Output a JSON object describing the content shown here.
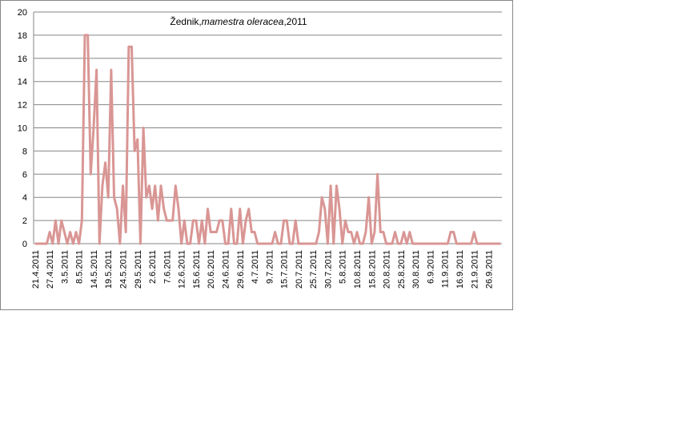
{
  "chart_data": {
    "type": "line",
    "title_parts": [
      "Žednik,",
      "mamestra oleracea",
      ",2011"
    ],
    "categories": [
      "21.4.2011",
      null,
      null,
      null,
      null,
      "27.4.2011",
      null,
      null,
      null,
      null,
      "3.5.2011",
      null,
      null,
      null,
      null,
      "8.5.2011",
      null,
      null,
      null,
      null,
      "14.5.2011",
      null,
      null,
      null,
      null,
      "19.5.2011",
      null,
      null,
      null,
      null,
      "24.5.2011",
      null,
      null,
      null,
      null,
      "29.5.2011",
      null,
      null,
      null,
      null,
      "2.6.2011",
      null,
      null,
      null,
      null,
      "7.6.2011",
      null,
      null,
      null,
      null,
      "12.6.2011",
      null,
      null,
      null,
      null,
      "15.6.2011",
      null,
      null,
      null,
      null,
      "20.6.2011",
      null,
      null,
      null,
      null,
      "24.6.2011",
      null,
      null,
      null,
      null,
      "29.6.2011",
      null,
      null,
      null,
      null,
      "4.7.2011",
      null,
      null,
      null,
      null,
      "9.7.2011",
      null,
      null,
      null,
      null,
      "15.7.2011",
      null,
      null,
      null,
      null,
      "20.7.2011",
      null,
      null,
      null,
      null,
      "25.7.2011",
      null,
      null,
      null,
      null,
      "30.7.2011",
      null,
      null,
      null,
      null,
      "5.8.2011",
      null,
      null,
      null,
      null,
      "10.8.2011",
      null,
      null,
      null,
      null,
      "15.8.2011",
      null,
      null,
      null,
      null,
      "20.8.2011",
      null,
      null,
      null,
      null,
      "25.8.2011",
      null,
      null,
      null,
      null,
      "30.8.2011",
      null,
      null,
      null,
      null,
      "6.9.2011",
      null,
      null,
      null,
      null,
      "11.9.2011",
      null,
      null,
      null,
      null,
      "16.9.2011",
      null,
      null,
      null,
      null,
      "21.9.2011",
      null,
      null,
      null,
      null,
      "26.9.2011",
      null,
      null,
      null,
      null
    ],
    "values": [
      0,
      0,
      0,
      0,
      0,
      1,
      0,
      2,
      0,
      2,
      1,
      0,
      1,
      0,
      1,
      0,
      2,
      18,
      18,
      6,
      10,
      15,
      0,
      5,
      7,
      4,
      15,
      4,
      3,
      0,
      5,
      1,
      17,
      17,
      8,
      9,
      0,
      10,
      4,
      5,
      3,
      5,
      2,
      5,
      3,
      2,
      2,
      2,
      5,
      3,
      0,
      2,
      0,
      0,
      2,
      2,
      0,
      2,
      0,
      3,
      1,
      1,
      1,
      2,
      2,
      0,
      0,
      3,
      0,
      0,
      3,
      0,
      2,
      3,
      1,
      1,
      0,
      0,
      0,
      0,
      0,
      0,
      1,
      0,
      0,
      2,
      2,
      0,
      0,
      2,
      0,
      0,
      0,
      0,
      0,
      0,
      0,
      1,
      4,
      3,
      0,
      5,
      0,
      5,
      3,
      0,
      2,
      1,
      1,
      0,
      1,
      0,
      0,
      1,
      4,
      0,
      1,
      6,
      1,
      1,
      0,
      0,
      0,
      1,
      0,
      0,
      1,
      0,
      1,
      0,
      0,
      0,
      0,
      0,
      0,
      0,
      0,
      0,
      0,
      0,
      0,
      0,
      1,
      1,
      0,
      0,
      0,
      0,
      0,
      0,
      1,
      0,
      0,
      0,
      0,
      0,
      0,
      0,
      0,
      0
    ],
    "color": "#d99694",
    "ylim": [
      0,
      20
    ],
    "yticks": [
      0,
      2,
      4,
      6,
      8,
      10,
      12,
      14,
      16,
      18,
      20
    ],
    "grid": true
  }
}
